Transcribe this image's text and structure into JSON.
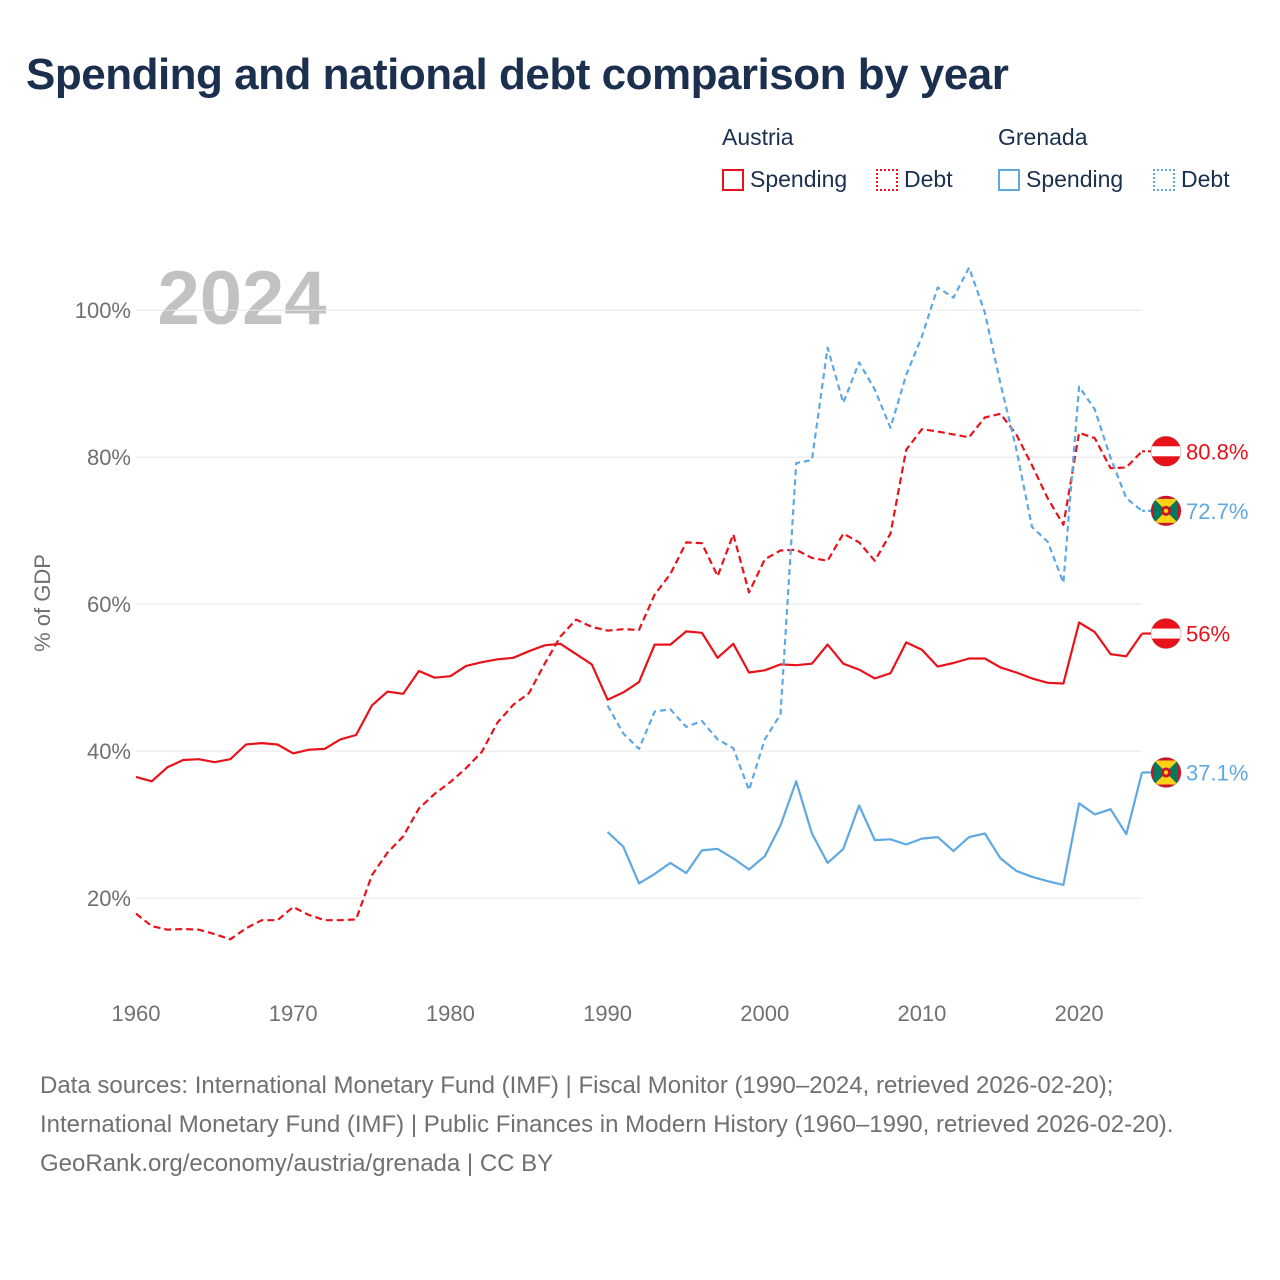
{
  "title": "Spending and national debt comparison by year",
  "legend": {
    "groups": [
      {
        "name": "Austria",
        "color": "#e8121b",
        "items": [
          {
            "label": "Spending",
            "style": "solid"
          },
          {
            "label": "Debt",
            "style": "dotted"
          }
        ]
      },
      {
        "name": "Grenada",
        "color": "#5fa8e2",
        "items": [
          {
            "label": "Spending",
            "style": "solid"
          },
          {
            "label": "Debt",
            "style": "dotted"
          }
        ]
      }
    ]
  },
  "chart_data": {
    "type": "line",
    "year_label": "2024",
    "ylabel": "% of GDP",
    "xlim": [
      1960,
      2024
    ],
    "ylim": [
      7.5,
      112
    ],
    "x_ticks": [
      1960,
      1970,
      1980,
      1990,
      2000,
      2010,
      2020
    ],
    "y_ticks": [
      {
        "value": 20,
        "label": "20%"
      },
      {
        "value": 40,
        "label": "40%"
      },
      {
        "value": 60,
        "label": "60%"
      },
      {
        "value": 80,
        "label": "80%"
      },
      {
        "value": 100,
        "label": "100%"
      }
    ],
    "series": [
      {
        "name": "Austria Spending",
        "country": "Austria",
        "color": "#e8121b",
        "dash": "solid",
        "end_label": "56%",
        "start_year": 1960,
        "values": [
          36.5,
          35.9,
          37.8,
          38.8,
          38.9,
          38.5,
          38.9,
          40.9,
          41.1,
          40.9,
          39.7,
          40.2,
          40.3,
          41.6,
          42.2,
          46.2,
          48.1,
          47.8,
          50.9,
          50.0,
          50.2,
          51.6,
          52.1,
          52.5,
          52.7,
          53.6,
          54.4,
          54.6,
          53.2,
          51.8,
          47.0,
          48.0,
          49.4,
          54.5,
          54.5,
          56.3,
          56.1,
          52.7,
          54.6,
          50.7,
          51.0,
          51.8,
          51.7,
          51.9,
          54.5,
          51.9,
          51.1,
          49.9,
          50.6,
          54.8,
          53.8,
          51.5,
          52.0,
          52.6,
          52.6,
          51.4,
          50.7,
          49.9,
          49.3,
          49.2,
          57.5,
          56.2,
          53.2,
          52.9,
          56.0
        ]
      },
      {
        "name": "Austria Debt",
        "country": "Austria",
        "color": "#e8121b",
        "dash": "dashed",
        "end_label": "80.8%",
        "start_year": 1960,
        "values": [
          17.9,
          16.2,
          15.7,
          15.8,
          15.7,
          15.1,
          14.4,
          15.9,
          17.0,
          17.0,
          18.8,
          17.7,
          17.0,
          17.0,
          17.1,
          23.1,
          26.2,
          28.4,
          32.2,
          34.2,
          35.8,
          37.7,
          39.9,
          43.9,
          46.3,
          47.9,
          51.9,
          55.6,
          57.9,
          56.9,
          56.4,
          56.6,
          56.5,
          61.3,
          64.1,
          68.4,
          68.3,
          63.8,
          69.5,
          61.6,
          66.1,
          67.3,
          67.4,
          66.3,
          65.9,
          69.6,
          68.4,
          65.9,
          69.6,
          81.0,
          83.8,
          83.5,
          83.1,
          82.7,
          85.4,
          85.9,
          83.1,
          78.9,
          74.4,
          70.8,
          83.3,
          82.6,
          78.5,
          78.6,
          80.8
        ]
      },
      {
        "name": "Grenada Spending",
        "country": "Grenada",
        "color": "#5fa8e2",
        "dash": "solid",
        "end_label": "37.1%",
        "start_year": 1990,
        "values": [
          29.0,
          27.0,
          22.0,
          23.3,
          24.8,
          23.4,
          26.5,
          26.7,
          25.4,
          23.9,
          25.7,
          29.9,
          35.9,
          28.8,
          24.8,
          26.7,
          32.6,
          27.9,
          28.0,
          27.3,
          28.1,
          28.3,
          26.4,
          28.3,
          28.8,
          25.4,
          23.7,
          22.9,
          22.3,
          21.8,
          32.9,
          31.4,
          32.1,
          28.7,
          37.1
        ]
      },
      {
        "name": "Grenada Debt",
        "country": "Grenada",
        "color": "#5fa8e2",
        "dash": "dotted",
        "end_label": "72.7%",
        "start_year": 1990,
        "values": [
          46.2,
          42.4,
          40.3,
          45.4,
          45.7,
          43.3,
          44.1,
          41.6,
          40.4,
          34.7,
          41.6,
          45.0,
          79.2,
          79.6,
          94.9,
          87.4,
          92.9,
          89.2,
          84.0,
          91.2,
          96.4,
          103.1,
          101.7,
          105.8,
          99.7,
          90.0,
          81.1,
          70.5,
          68.5,
          62.9,
          89.6,
          86.5,
          79.9,
          74.4,
          72.7
        ]
      }
    ]
  },
  "footer": {
    "sources": "Data sources: International Monetary Fund (IMF) | Fiscal Monitor (1990–2024, retrieved 2026-02-20); International Monetary Fund (IMF) | Public Finances in Modern History (1960–1990, retrieved 2026-02-20).",
    "attribution": "GeoRank.org/economy/austria/grenada | CC BY"
  }
}
